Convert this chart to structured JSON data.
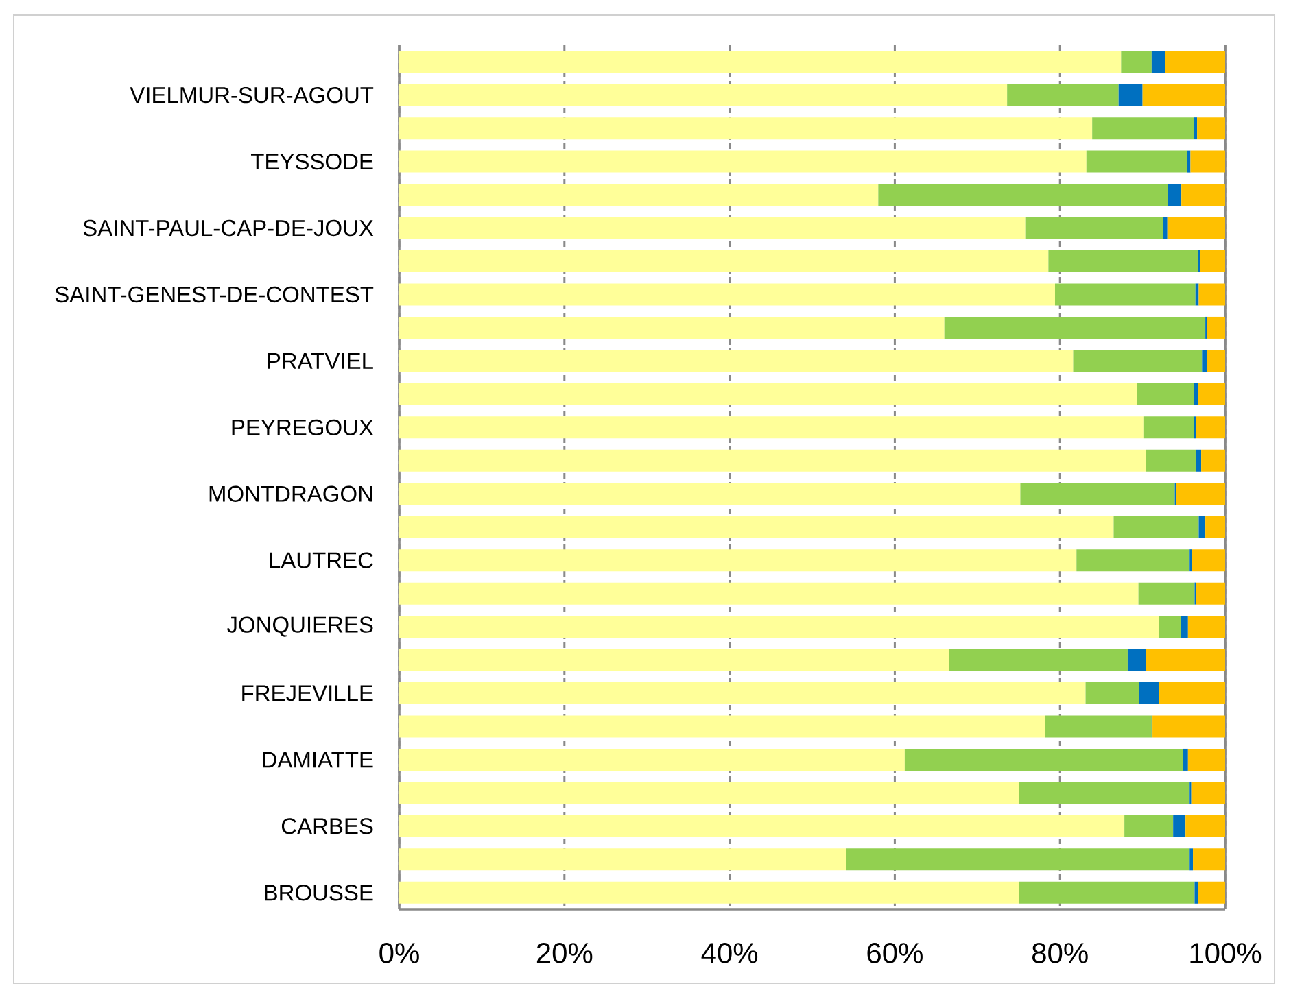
{
  "chart_data": {
    "type": "bar",
    "orientation": "horizontal",
    "stacked": true,
    "categories": [
      null,
      "VIELMUR-SUR-AGOUT",
      null,
      "TEYSSODE",
      null,
      "SAINT-PAUL-CAP-DE-JOUX",
      null,
      "SAINT-GENEST-DE-CONTEST",
      null,
      "PRATVIEL",
      null,
      "PEYREGOUX",
      null,
      "MONTDRAGON",
      null,
      "LAUTREC",
      null,
      "JONQUIERES",
      null,
      "FREJEVILLE",
      null,
      "DAMIATTE",
      null,
      "CARBES",
      null,
      "BROUSSE"
    ],
    "series": [
      {
        "color": "#ffff99",
        "values": [
          87.4,
          73.6,
          83.9,
          83.2,
          58.0,
          75.8,
          78.6,
          79.4,
          66.0,
          81.6,
          89.3,
          90.1,
          90.4,
          75.2,
          86.5,
          82.0,
          89.5,
          92.0,
          66.6,
          83.1,
          78.2,
          61.2,
          75.0,
          87.8,
          54.1,
          75.0
        ]
      },
      {
        "color": "#92d050",
        "values": [
          3.7,
          13.5,
          12.3,
          12.2,
          35.1,
          16.7,
          18.1,
          17.0,
          31.6,
          15.6,
          6.9,
          6.1,
          6.1,
          18.7,
          10.3,
          13.7,
          6.8,
          2.6,
          21.6,
          6.5,
          12.9,
          33.7,
          20.7,
          5.9,
          41.6,
          21.3
        ]
      },
      {
        "color": "#0070c0",
        "values": [
          1.6,
          2.9,
          0.4,
          0.4,
          1.6,
          0.5,
          0.3,
          0.4,
          0.2,
          0.6,
          0.5,
          0.3,
          0.6,
          0.2,
          0.8,
          0.3,
          0.2,
          0.9,
          2.2,
          2.4,
          0.1,
          0.6,
          0.2,
          1.5,
          0.4,
          0.4
        ]
      },
      {
        "color": "#ffc000",
        "values": [
          7.3,
          10.0,
          3.4,
          4.2,
          5.3,
          7.0,
          3.0,
          3.2,
          2.2,
          2.2,
          3.3,
          3.5,
          2.9,
          5.9,
          2.4,
          4.0,
          3.5,
          4.5,
          9.6,
          8.0,
          8.8,
          4.5,
          4.1,
          4.8,
          3.9,
          3.3
        ]
      }
    ],
    "xlim": [
      0,
      100
    ],
    "xticks": [
      {
        "value": 0,
        "label": "0%"
      },
      {
        "value": 20,
        "label": "20%"
      },
      {
        "value": 40,
        "label": "40%"
      },
      {
        "value": 60,
        "label": "60%"
      },
      {
        "value": 80,
        "label": "80%"
      },
      {
        "value": 100,
        "label": "100%"
      }
    ],
    "grid": "x"
  }
}
